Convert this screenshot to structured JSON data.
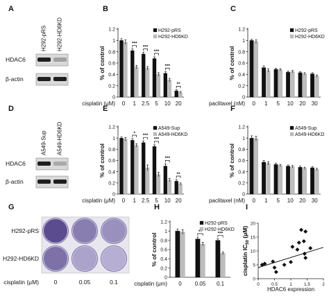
{
  "figure": {
    "panel_letters": {
      "A": "A",
      "B": "B",
      "C": "C",
      "D": "D",
      "E": "E",
      "F": "F",
      "G": "G",
      "H": "H",
      "I": "I"
    },
    "common": {
      "ylabel": "% of control"
    }
  },
  "western": [
    {
      "panel": "A",
      "lanes": [
        "H292-pRS",
        "H292-HD6KD"
      ],
      "rows": [
        {
          "label": "HDAC6",
          "intensity": [
            1.0,
            0.35
          ]
        },
        {
          "label": "β-actin",
          "intensity": [
            1.0,
            1.0
          ]
        }
      ]
    },
    {
      "panel": "D",
      "lanes": [
        "A549-Sup",
        "A549-HD6KD"
      ],
      "rows": [
        {
          "label": "HDAC6",
          "intensity": [
            1.0,
            0.3
          ]
        },
        {
          "label": "β-actin",
          "intensity": [
            1.0,
            1.0
          ]
        }
      ]
    }
  ],
  "colony": {
    "panel": "G",
    "row_labels": [
      "H292-pRS",
      "H292-HD6KD"
    ],
    "xlabel": "cisplatin (μM)",
    "col_labels": [
      "0",
      "0.05",
      "0.1"
    ],
    "density": [
      [
        0.95,
        0.55,
        0.4
      ],
      [
        0.65,
        0.25,
        0.15
      ]
    ],
    "colors": {
      "plate": "#8a7fb8",
      "dense": "#3f2f7a",
      "light": "#c9c3e0"
    }
  },
  "chart_data": [
    {
      "panel": "B",
      "type": "bar",
      "xlabel": "cisplatin (μM)",
      "ylabel": "% of control",
      "categories": [
        "0",
        "1",
        "2.5",
        "5",
        "10",
        "20"
      ],
      "series": [
        {
          "name": "H292-pRS",
          "color": "#111111",
          "values": [
            1.0,
            0.82,
            0.76,
            0.68,
            0.42,
            0.11
          ],
          "errors": [
            0.03,
            0.03,
            0.03,
            0.03,
            0.03,
            0.02
          ]
        },
        {
          "name": "H292-HD6KD",
          "color": "#bdbdbd",
          "values": [
            0.97,
            0.53,
            0.51,
            0.4,
            0.3,
            0.08
          ],
          "errors": [
            0.04,
            0.03,
            0.03,
            0.03,
            0.03,
            0.02
          ]
        }
      ],
      "significance": [
        "",
        "***",
        "***",
        "***",
        "***",
        "**"
      ],
      "ylim": [
        0,
        1.2
      ],
      "yticks": [
        "0",
        "0.2",
        "0.4",
        "0.6",
        "0.8",
        "1",
        "1.2"
      ],
      "legend": "top-right"
    },
    {
      "panel": "C",
      "type": "bar",
      "xlabel": "paclitaxel (nM)",
      "ylabel": "% of control",
      "categories": [
        "0",
        "1",
        "5",
        "10",
        "20",
        "30"
      ],
      "series": [
        {
          "name": "H292-pRS",
          "color": "#111111",
          "values": [
            1.0,
            0.52,
            0.49,
            0.44,
            0.43,
            0.41
          ],
          "errors": [
            0.02,
            0.03,
            0.02,
            0.02,
            0.02,
            0.02
          ]
        },
        {
          "name": "H292-HD6KD",
          "color": "#bdbdbd",
          "values": [
            0.98,
            0.47,
            0.48,
            0.45,
            0.41,
            0.37
          ],
          "errors": [
            0.03,
            0.03,
            0.02,
            0.02,
            0.02,
            0.02
          ]
        }
      ],
      "significance": [
        "",
        "",
        "",
        "",
        "",
        ""
      ],
      "ylim": [
        0,
        1.2
      ],
      "yticks": [
        "0",
        "0.2",
        "0.4",
        "0.6",
        "0.8",
        "1",
        "1.2"
      ],
      "legend": "top-right"
    },
    {
      "panel": "E",
      "type": "bar",
      "xlabel": "cisplatin (μM)",
      "ylabel": "% of control",
      "categories": [
        "0",
        "1",
        "2.5",
        "5",
        "10",
        "20"
      ],
      "series": [
        {
          "name": "A549-Sup",
          "color": "#111111",
          "values": [
            1.0,
            0.96,
            0.92,
            0.85,
            0.5,
            0.23
          ],
          "errors": [
            0.02,
            0.03,
            0.03,
            0.03,
            0.04,
            0.03
          ]
        },
        {
          "name": "A549-HD6KD",
          "color": "#bdbdbd",
          "values": [
            0.98,
            0.87,
            0.47,
            0.35,
            0.25,
            0.18
          ],
          "errors": [
            0.03,
            0.03,
            0.05,
            0.04,
            0.03,
            0.02
          ]
        }
      ],
      "significance": [
        "",
        "*",
        "***",
        "***",
        "***",
        "**"
      ],
      "ylim": [
        0,
        1.2
      ],
      "yticks": [
        "0",
        "0.2",
        "0.4",
        "0.6",
        "0.8",
        "1",
        "1.2"
      ],
      "legend": "top-right"
    },
    {
      "panel": "F",
      "type": "bar",
      "xlabel": "paclitaxel (nM)",
      "ylabel": "% of control",
      "categories": [
        "0",
        "1",
        "5",
        "10",
        "20",
        "30"
      ],
      "series": [
        {
          "name": "A549-Sup",
          "color": "#111111",
          "values": [
            1.0,
            0.57,
            0.53,
            0.5,
            0.48,
            0.47
          ],
          "errors": [
            0.04,
            0.03,
            0.02,
            0.02,
            0.02,
            0.02
          ]
        },
        {
          "name": "A549-HD6KD",
          "color": "#bdbdbd",
          "values": [
            0.99,
            0.55,
            0.51,
            0.49,
            0.46,
            0.44
          ],
          "errors": [
            0.04,
            0.03,
            0.02,
            0.02,
            0.02,
            0.02
          ]
        }
      ],
      "significance": [
        "",
        "",
        "",
        "",
        "",
        ""
      ],
      "ylim": [
        0,
        1.2
      ],
      "yticks": [
        "0",
        "0.2",
        "0.4",
        "0.6",
        "0.8",
        "1",
        "1.2"
      ],
      "legend": "top-right"
    },
    {
      "panel": "H",
      "type": "bar",
      "xlabel": "cisplatin (μm)",
      "ylabel": "% of control",
      "categories": [
        "0",
        "0.05",
        "0.1"
      ],
      "series": [
        {
          "name": "H292-pRS",
          "color": "#111111",
          "values": [
            1.0,
            0.83,
            0.8
          ],
          "errors": [
            0.04,
            0.04,
            0.03
          ]
        },
        {
          "name": "H292-HD6KD",
          "color": "#bdbdbd",
          "values": [
            0.98,
            0.72,
            0.52
          ],
          "errors": [
            0.05,
            0.04,
            0.03
          ]
        }
      ],
      "significance": [
        "",
        "**",
        "***"
      ],
      "ylim": [
        0,
        1.2
      ],
      "yticks": [
        "0",
        "0.2",
        "0.4",
        "0.6",
        "0.8",
        "1",
        "1.2"
      ],
      "legend": "top-right"
    },
    {
      "panel": "I",
      "type": "scatter",
      "xlabel": "HDAC6 expression",
      "ylabel": "cisplatin IC50 (μM)",
      "ylabel_main": "cisplatin IC",
      "ylabel_sub": "50",
      "ylabel_unit": " (μM)",
      "xlim": [
        0,
        2
      ],
      "ylim": [
        0,
        20
      ],
      "xticks": [
        "0",
        "0.5",
        "1",
        "1.5",
        "2"
      ],
      "yticks": [
        "0",
        "5",
        "10",
        "15",
        "20"
      ],
      "points": [
        {
          "x": 0.12,
          "y": 5.0
        },
        {
          "x": 0.2,
          "y": 5.4
        },
        {
          "x": 0.45,
          "y": 6.2
        },
        {
          "x": 0.5,
          "y": 4.0
        },
        {
          "x": 0.55,
          "y": 2.4
        },
        {
          "x": 0.8,
          "y": 5.0
        },
        {
          "x": 1.0,
          "y": 6.0
        },
        {
          "x": 1.05,
          "y": 11.5
        },
        {
          "x": 1.2,
          "y": 10.5
        },
        {
          "x": 1.25,
          "y": 13.0
        },
        {
          "x": 1.32,
          "y": 17.6
        },
        {
          "x": 1.4,
          "y": 13.5
        },
        {
          "x": 1.45,
          "y": 17.0
        },
        {
          "x": 1.6,
          "y": 11.0
        },
        {
          "x": 1.45,
          "y": 7.5
        },
        {
          "x": 1.42,
          "y": 9.0
        }
      ],
      "trendline": {
        "x0": 0.0,
        "y0": 4.0,
        "x1": 2.0,
        "y1": 11.3
      }
    }
  ]
}
